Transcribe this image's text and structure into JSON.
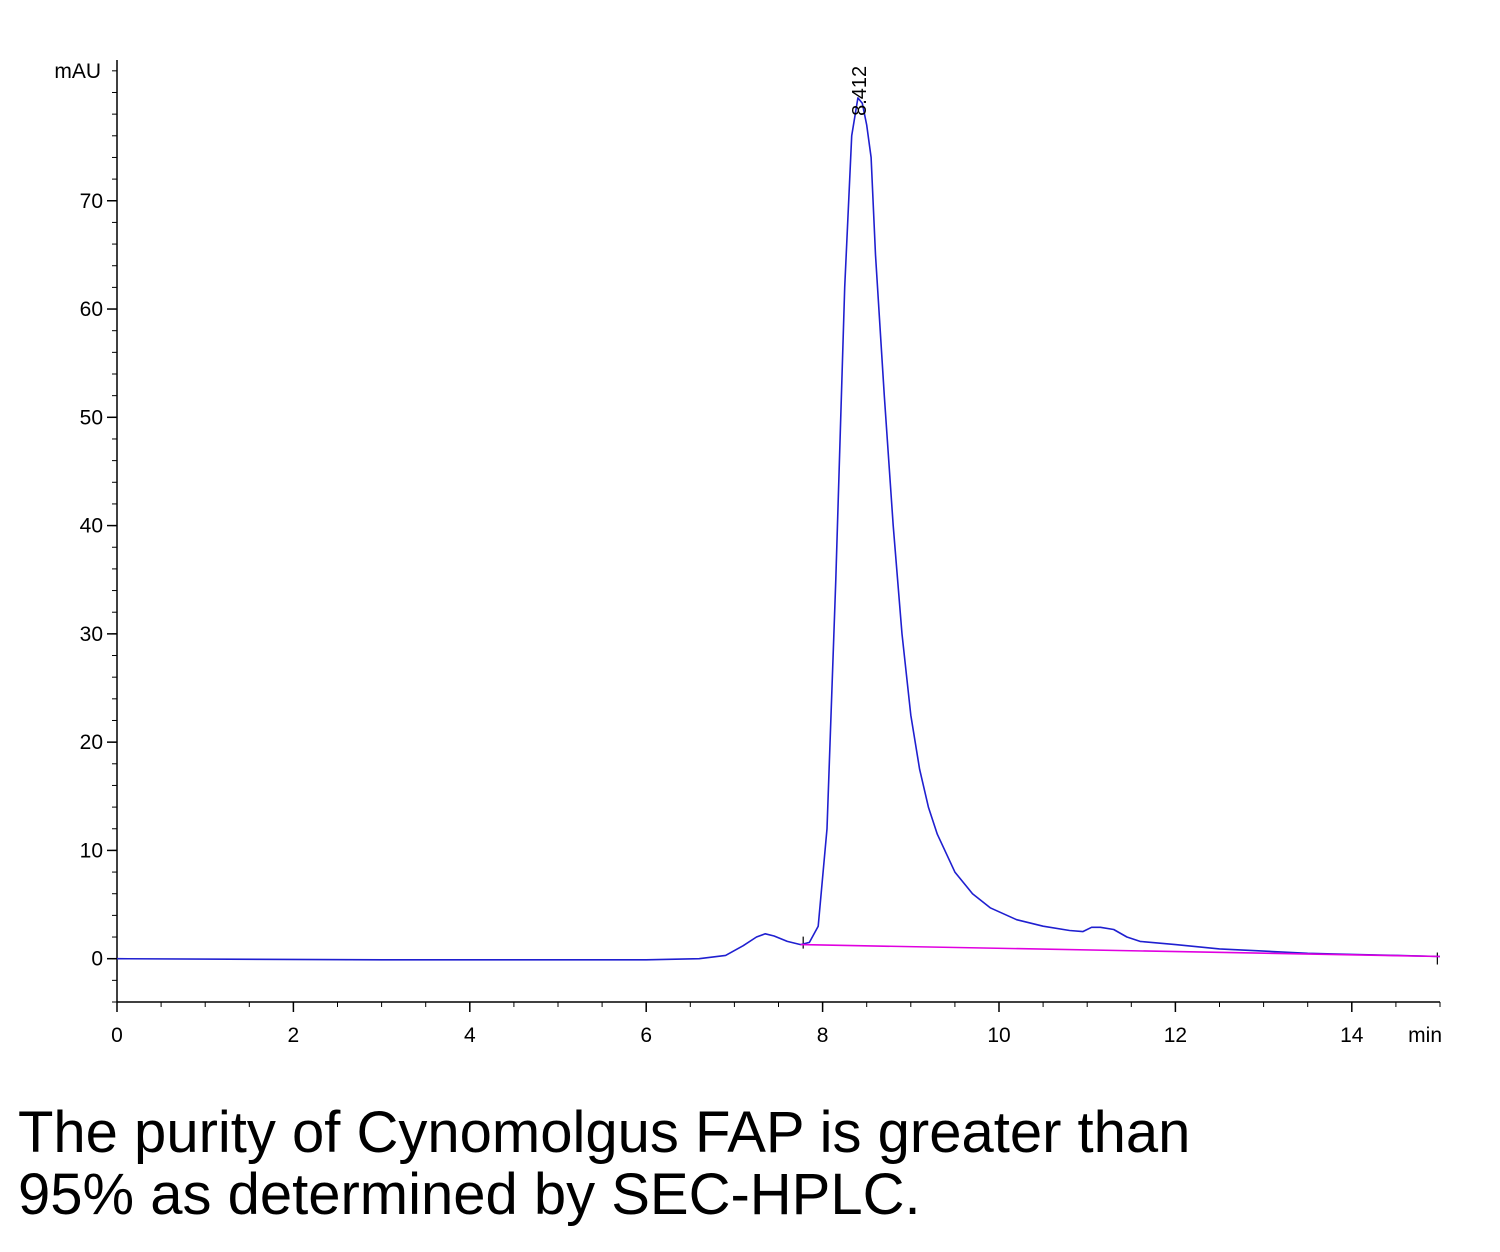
{
  "chart_data": {
    "type": "line",
    "title": "",
    "xlabel": "min",
    "ylabel": "mAU",
    "xlim": [
      0,
      15
    ],
    "ylim": [
      -4,
      83
    ],
    "x_ticks": [
      0,
      2,
      4,
      6,
      8,
      10,
      12,
      14
    ],
    "y_ticks": [
      0,
      10,
      20,
      30,
      40,
      50,
      60,
      70
    ],
    "grid": false,
    "peak_annotation": {
      "label": "8.412",
      "x": 8.412,
      "y": 79.5
    },
    "series": [
      {
        "color": "#1f1fd0",
        "x": [
          0,
          3,
          6,
          6.6,
          6.9,
          7.1,
          7.25,
          7.35,
          7.45,
          7.6,
          7.75,
          7.85,
          7.95,
          8.05,
          8.15,
          8.25,
          8.33,
          8.4,
          8.45,
          8.5,
          8.55,
          8.6,
          8.7,
          8.8,
          8.9,
          9.0,
          9.1,
          9.2,
          9.3,
          9.5,
          9.7,
          9.9,
          10.2,
          10.5,
          10.8,
          10.95,
          11.05,
          11.15,
          11.3,
          11.45,
          11.6,
          12.0,
          12.5,
          13.0,
          13.5,
          14.0,
          14.5,
          15.0
        ],
        "y": [
          0.0,
          -0.1,
          -0.1,
          0.0,
          0.3,
          1.2,
          2.0,
          2.3,
          2.1,
          1.6,
          1.3,
          1.5,
          3.0,
          12.0,
          35.0,
          62.0,
          76.0,
          79.5,
          79.0,
          77.0,
          74.0,
          65.0,
          52.0,
          40.0,
          30.0,
          22.5,
          17.5,
          14.0,
          11.5,
          8.0,
          6.0,
          4.7,
          3.6,
          3.0,
          2.6,
          2.5,
          2.9,
          2.9,
          2.7,
          2.0,
          1.6,
          1.3,
          0.9,
          0.7,
          0.5,
          0.4,
          0.3,
          0.2
        ]
      },
      {
        "color": "#e000e0",
        "x": [
          7.75,
          15.0
        ],
        "y": [
          1.3,
          0.2
        ]
      }
    ]
  },
  "caption": {
    "line1": "The purity of Cynomolgus FAP is greater than",
    "line2": "95% as determined by SEC-HPLC."
  }
}
